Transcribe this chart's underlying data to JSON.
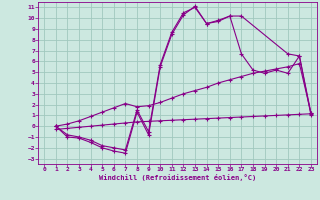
{
  "background_color": "#cce8e0",
  "grid_color": "#a0c8be",
  "line_color": "#880088",
  "xlabel": "Windchill (Refroidissement éolien,°C)",
  "xlim": [
    -0.5,
    23.5
  ],
  "ylim": [
    -3.5,
    11.5
  ],
  "xticks": [
    0,
    1,
    2,
    3,
    4,
    5,
    6,
    7,
    8,
    9,
    10,
    11,
    12,
    13,
    14,
    15,
    16,
    17,
    18,
    19,
    20,
    21,
    22,
    23
  ],
  "yticks": [
    -3,
    -2,
    -1,
    0,
    1,
    2,
    3,
    4,
    5,
    6,
    7,
    8,
    9,
    10,
    11
  ],
  "curve1_x": [
    1,
    2,
    3,
    4,
    5,
    6,
    7,
    8,
    9,
    10,
    11,
    12,
    13,
    14,
    15,
    16,
    17,
    21,
    22,
    23
  ],
  "curve1_y": [
    0,
    -1,
    -1.1,
    -1.5,
    -2.0,
    -2.3,
    -2.5,
    1.3,
    -0.8,
    5.5,
    8.5,
    10.3,
    11.1,
    9.5,
    9.8,
    10.2,
    10.2,
    6.7,
    6.5,
    1.0
  ],
  "curve2_x": [
    1,
    2,
    3,
    4,
    5,
    6,
    7,
    8,
    9,
    10,
    11,
    12,
    13,
    14,
    15,
    16,
    17,
    18,
    19,
    20,
    21,
    22,
    23
  ],
  "curve2_y": [
    0,
    -0.8,
    -1.0,
    -1.3,
    -1.8,
    -2.0,
    -2.2,
    1.5,
    -0.5,
    5.7,
    8.7,
    10.5,
    11.0,
    9.5,
    9.7,
    10.2,
    6.7,
    5.2,
    4.9,
    5.2,
    4.9,
    6.5,
    1.2
  ],
  "curve3_x": [
    1,
    2,
    3,
    4,
    5,
    6,
    7,
    8,
    9,
    10,
    11,
    12,
    13,
    14,
    15,
    16,
    17,
    18,
    19,
    20,
    21,
    22,
    23
  ],
  "curve3_y": [
    0,
    0.2,
    0.5,
    0.9,
    1.3,
    1.7,
    2.1,
    1.8,
    1.9,
    2.2,
    2.6,
    3.0,
    3.3,
    3.6,
    4.0,
    4.3,
    4.6,
    4.9,
    5.1,
    5.3,
    5.5,
    5.8,
    1.2
  ],
  "curve4_x": [
    1,
    2,
    3,
    4,
    5,
    6,
    7,
    8,
    9,
    10,
    11,
    12,
    13,
    14,
    15,
    16,
    17,
    18,
    19,
    20,
    21,
    22,
    23
  ],
  "curve4_y": [
    -0.3,
    -0.2,
    -0.1,
    0.0,
    0.1,
    0.2,
    0.3,
    0.4,
    0.45,
    0.5,
    0.55,
    0.6,
    0.65,
    0.7,
    0.75,
    0.8,
    0.85,
    0.9,
    0.95,
    1.0,
    1.05,
    1.1,
    1.15
  ]
}
